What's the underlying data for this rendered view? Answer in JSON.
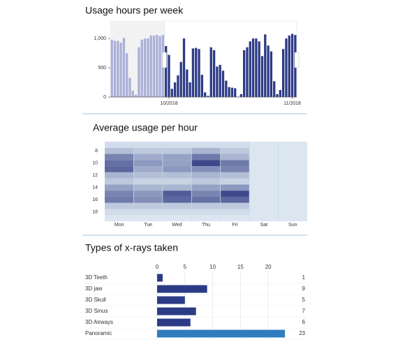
{
  "chart_data": [
    {
      "type": "bar",
      "title": "Usage hours per week",
      "categories": [
        null,
        null,
        null,
        null,
        null,
        null,
        null,
        null,
        null,
        null,
        null,
        null,
        null,
        null,
        null,
        null,
        null,
        null,
        null,
        "10/2018",
        null,
        null,
        null,
        null,
        null,
        null,
        null,
        null,
        null,
        null,
        null,
        null,
        null,
        null,
        null,
        null,
        null,
        null,
        null,
        null,
        null,
        null,
        null,
        null,
        null,
        null,
        null,
        null,
        null,
        null,
        null,
        null,
        null,
        null,
        null,
        null,
        null,
        null,
        null,
        null,
        "11/2018",
        null
      ],
      "values": [
        980,
        960,
        960,
        930,
        1010,
        750,
        330,
        110,
        40,
        850,
        980,
        1000,
        1000,
        1050,
        1050,
        1060,
        1040,
        1060,
        870,
        720,
        140,
        250,
        370,
        600,
        1000,
        470,
        250,
        830,
        840,
        820,
        380,
        80,
        20,
        850,
        800,
        520,
        550,
        450,
        280,
        170,
        160,
        150,
        0,
        50,
        800,
        850,
        950,
        1000,
        1000,
        950,
        700,
        1070,
        880,
        780,
        270,
        50,
        120,
        820,
        1000,
        1050,
        1080,
        1060
      ],
      "color": "#2c3b85",
      "unselected_color": "#aab0d8",
      "selection": [
        18,
        61
      ],
      "ylim": [
        0,
        1300
      ],
      "yticks": [
        0,
        500,
        {
          "value": 1000,
          "label": "1,000"
        }
      ]
    },
    {
      "type": "heatmap",
      "title": "Average usage per hour",
      "categories": [
        "Mon",
        "Tue",
        "Wed",
        "Thu",
        "Fri",
        "Sat",
        "Sun"
      ],
      "y": [
        7,
        8,
        9,
        10,
        11,
        12,
        13,
        14,
        15,
        16,
        17,
        18,
        19
      ],
      "z": [
        [
          10,
          10,
          10,
          10,
          10,
          5,
          5
        ],
        [
          25,
          20,
          20,
          30,
          20,
          5,
          5
        ],
        [
          55,
          35,
          40,
          60,
          30,
          5,
          5
        ],
        [
          65,
          45,
          40,
          85,
          60,
          5,
          5
        ],
        [
          70,
          35,
          45,
          50,
          55,
          5,
          5
        ],
        [
          30,
          25,
          25,
          30,
          25,
          5,
          5
        ],
        [
          20,
          15,
          15,
          20,
          15,
          5,
          5
        ],
        [
          40,
          30,
          30,
          40,
          45,
          5,
          5
        ],
        [
          55,
          45,
          75,
          55,
          85,
          5,
          5
        ],
        [
          60,
          50,
          70,
          65,
          70,
          5,
          5
        ],
        [
          20,
          20,
          20,
          20,
          20,
          5,
          5
        ],
        [
          10,
          10,
          10,
          10,
          10,
          5,
          5
        ],
        [
          5,
          5,
          5,
          5,
          5,
          5,
          5
        ]
      ],
      "zlim": [
        0,
        100
      ],
      "colors": [
        "#e6f0f7",
        "#1f2c78"
      ],
      "ylim": [
        6.5,
        19.5
      ],
      "yticks": [
        8,
        10,
        12,
        14,
        16,
        18
      ]
    },
    {
      "type": "hbar",
      "title": "Types of x-rays taken",
      "categories": [
        "3D Teeth",
        "3D jaw",
        "3D Skull",
        "3D Sinus",
        "3D Airways",
        "Panoramic"
      ],
      "values": [
        1,
        9,
        5,
        7,
        6,
        23
      ],
      "colors": [
        "#2c3b85",
        "#2c3b85",
        "#2c3b85",
        "#2c3b85",
        "#2c3b85",
        "#2f7cbf"
      ],
      "xlim": [
        0,
        24
      ],
      "xticks": [
        0,
        5,
        10,
        15,
        20
      ],
      "grid": true
    }
  ]
}
